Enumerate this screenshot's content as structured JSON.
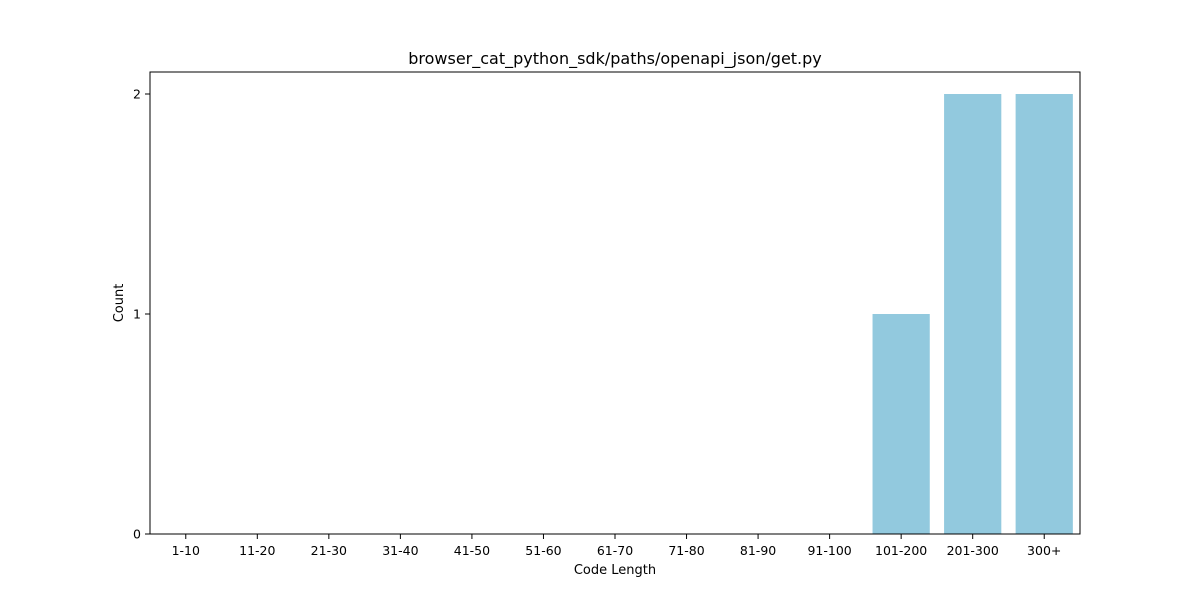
{
  "chart_data": {
    "type": "bar",
    "title": "browser_cat_python_sdk/paths/openapi_json/get.py",
    "xlabel": "Code Length",
    "ylabel": "Count",
    "categories": [
      "1-10",
      "11-20",
      "21-30",
      "31-40",
      "41-50",
      "51-60",
      "61-70",
      "71-80",
      "81-90",
      "91-100",
      "101-200",
      "201-300",
      "300+"
    ],
    "values": [
      0,
      0,
      0,
      0,
      0,
      0,
      0,
      0,
      0,
      0,
      1,
      2,
      2
    ],
    "ylim": [
      0,
      2.1
    ],
    "yticks": [
      0,
      1,
      2
    ],
    "bar_color": "#92c9de",
    "grid": false,
    "legend": "none"
  }
}
